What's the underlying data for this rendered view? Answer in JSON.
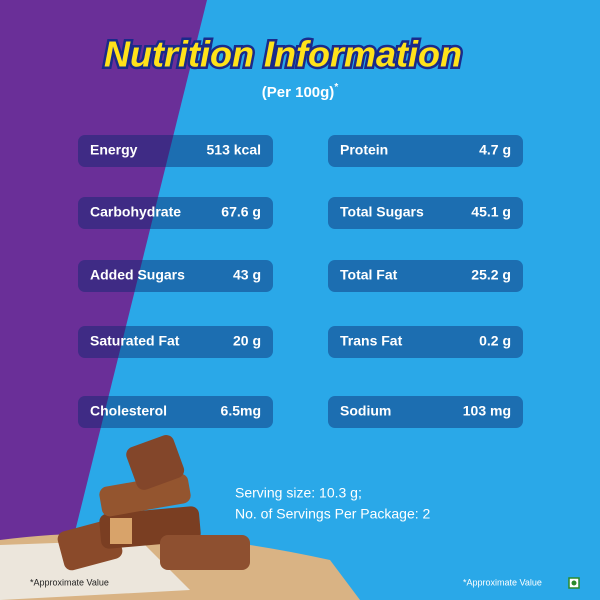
{
  "header": {
    "title": "Nutrition Information",
    "subtitle": "(Per 100g)",
    "subtitle_mark": "*"
  },
  "nutrients": {
    "left": [
      {
        "label": "Energy",
        "value": "513 kcal"
      },
      {
        "label": "Carbohydrate",
        "value": "67.6 g"
      },
      {
        "label": "Added Sugars",
        "value": "43 g"
      },
      {
        "label": "Saturated Fat",
        "value": "20 g"
      },
      {
        "label": "Cholesterol",
        "value": "6.5mg"
      }
    ],
    "right": [
      {
        "label": "Protein",
        "value": "4.7 g"
      },
      {
        "label": "Total Sugars",
        "value": "45.1 g"
      },
      {
        "label": "Total Fat",
        "value": "25.2 g"
      },
      {
        "label": "Trans Fat",
        "value": "0.2 g"
      },
      {
        "label": "Sodium",
        "value": "103 mg"
      }
    ]
  },
  "serving": {
    "size": "Serving size: 10.3 g;",
    "count": "No. of Servings Per Package: 2"
  },
  "footnotes": {
    "left": "*Approximate Value",
    "right": "*Approximate Value"
  }
}
